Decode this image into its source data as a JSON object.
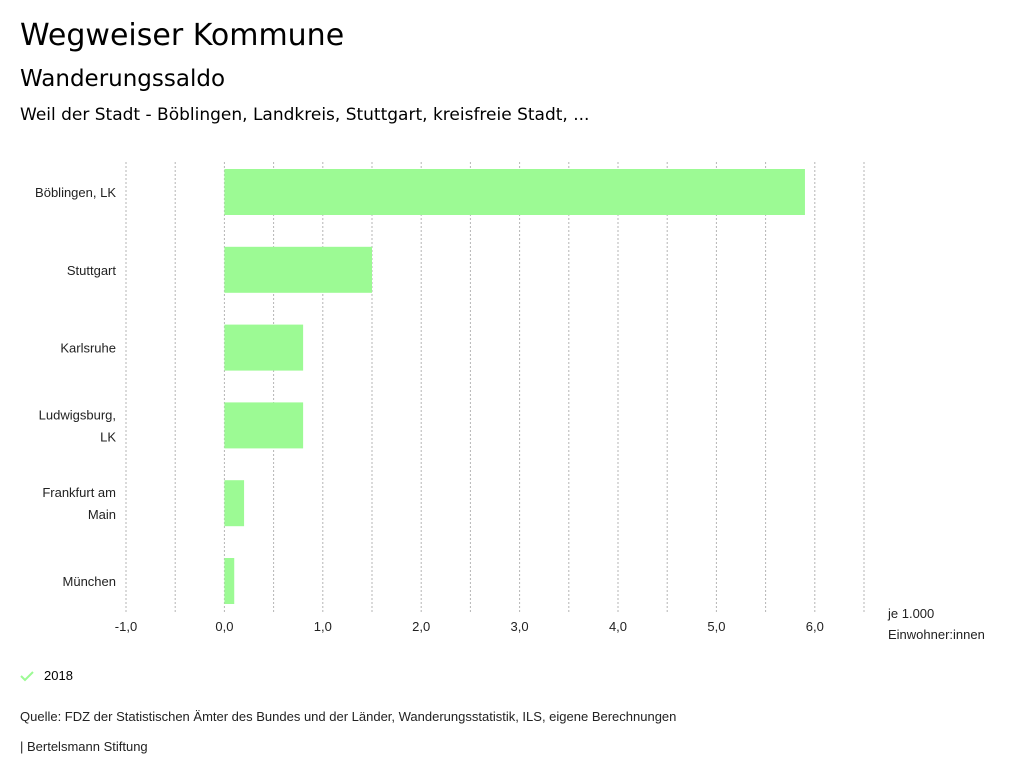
{
  "header": {
    "title": "Wegweiser Kommune",
    "subtitle": "Wanderungssaldo",
    "region": "Weil der Stadt - Böblingen, Landkreis, Stuttgart, kreisfreie Stadt, ..."
  },
  "chart_data": {
    "type": "bar",
    "orientation": "horizontal",
    "categories": [
      [
        "Böblingen, LK"
      ],
      [
        "Stuttgart"
      ],
      [
        "Karlsruhe"
      ],
      [
        "Ludwigsburg,",
        "LK"
      ],
      [
        "Frankfurt am",
        "Main"
      ],
      [
        "München"
      ]
    ],
    "series": [
      {
        "name": "2018",
        "values": [
          5.9,
          1.5,
          0.8,
          0.8,
          0.2,
          0.1
        ],
        "color": "#9cfa94"
      }
    ],
    "xlim": [
      -1,
      6.5
    ],
    "xticks": [
      -1,
      0,
      1,
      2,
      3,
      4,
      5,
      6
    ],
    "xtick_labels": [
      "-1,0",
      "0,0",
      "1,0",
      "2,0",
      "3,0",
      "4,0",
      "5,0",
      "6,0"
    ],
    "xlabel": [
      "je 1.000",
      "Einwohner:innen"
    ],
    "grid": "vertical dotted every 0.5",
    "legend": "bottom-left"
  },
  "legend": {
    "label": "2018",
    "color": "#9cfa94"
  },
  "footer": {
    "source": "Quelle: FDZ der Statistischen Ämter des Bundes und der Länder, Wanderungsstatistik, ILS, eigene Berechnungen",
    "brand": "| Bertelsmann Stiftung"
  }
}
